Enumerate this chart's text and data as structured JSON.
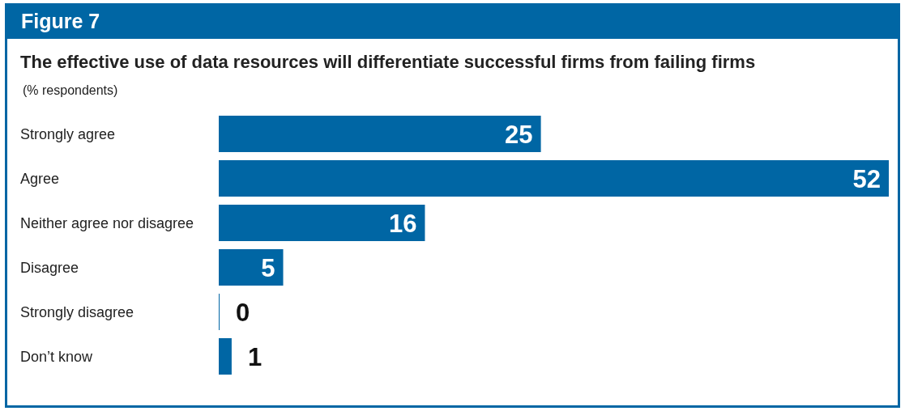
{
  "chart_data": {
    "type": "bar",
    "orientation": "horizontal",
    "title": "The effective use of data resources will differentiate successful firms from failing firms",
    "subtitle": "(% respondents)",
    "annotations": [
      "Figure 7"
    ],
    "categories": [
      "Strongly agree",
      "Agree",
      "Neither agree nor disagree",
      "Disagree",
      "Strongly disagree",
      "Don’t know"
    ],
    "values": [
      25,
      52,
      16,
      5,
      0,
      1
    ],
    "color": "#0066a4",
    "data_labels": true
  }
}
